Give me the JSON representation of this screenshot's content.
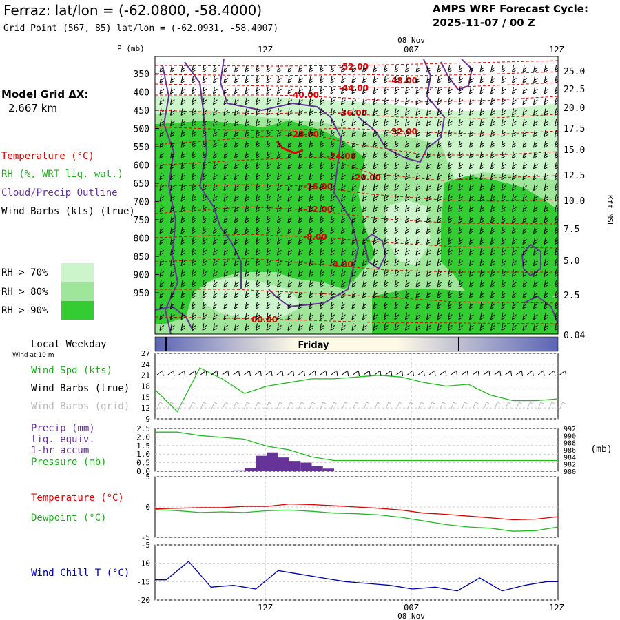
{
  "header": {
    "title": "Ferraz:  lat/lon = (-62.0800, -58.4000)",
    "subtitle": "Grid Point (567, 85) lat/lon = (-62.0931, -58.4007)",
    "cycle_line1": "AMPS WRF Forecast Cycle:",
    "cycle_line2": "2025-11-07 / 00  Z"
  },
  "left_panel": {
    "grid_label": "Model Grid ΔX:",
    "grid_value": "2.667 km",
    "legend_temperature": "Temperature (°C)",
    "legend_rh": "RH (%, WRT liq. wat.)",
    "legend_cloud": "Cloud/Precip Outline",
    "legend_wind": "Wind Barbs (kts) (true)",
    "rh_keys": [
      "RH > 70%",
      "RH > 80%",
      "RH > 90%"
    ],
    "weekday_label": "Local Weekday",
    "wind_at": "Wind at 10 m",
    "wspd_label": "Wind Spd (kts)",
    "wbarb_true_label": "Wind Barbs (true)",
    "wbarb_grid_label": "Wind Barbs (grid)",
    "precip_label1": "Precip (mm)",
    "precip_label2": "liq. equiv.",
    "precip_label3": "1-hr accum",
    "pressure_label": "Pressure (mb)",
    "temp_label": "Temperature (°C)",
    "dew_label": "Dewpoint (°C)",
    "windchill_label": "Wind Chill T (°C)"
  },
  "colors": {
    "temperature": "#e00000",
    "rh70": "#ccf5cc",
    "rh80": "#a0e69a",
    "rh90": "#33cc33",
    "cloud": "#663399",
    "wind": "#000000",
    "wspd": "#22bb22",
    "precip": "#663399",
    "pressure": "#22bb22",
    "dewpoint": "#22bb22",
    "windchill": "#0000aa",
    "weekday_band_edge": "#5a64b4",
    "weekday_band_mid": "#fffae6"
  },
  "time_axis": {
    "top_labels": [
      "12Z",
      "00Z",
      "12Z"
    ],
    "date_label": "08 Nov",
    "bottom_labels": [
      "12Z",
      "00Z",
      "12Z"
    ],
    "weekday": "Friday"
  },
  "chart_data": [
    {
      "type": "heatmap",
      "title": "",
      "ylabel": "P (mb)",
      "y2label": "Kft MSL",
      "pressure_ticks": [
        "350",
        "400",
        "450",
        "500",
        "550",
        "600",
        "650",
        "700",
        "750",
        "800",
        "850",
        "900",
        "950"
      ],
      "height_ticks": [
        "25.0",
        "22.5",
        "20.0",
        "17.5",
        "15.0",
        "12.5",
        "10.0",
        "7.5",
        "5.0",
        "2.5",
        "0.04"
      ],
      "temperature_contour_labels": [
        "-52.00",
        "-48.00",
        "-44.00",
        "-40.00",
        "-36.00",
        "-32.00",
        "-28.00",
        "-24.00",
        "-20.00",
        "-16.00",
        "-12.00",
        "-8.00",
        "-4.00",
        "00.00"
      ]
    },
    {
      "type": "line",
      "title": "Wind Spd (kts)",
      "y_ticks": [
        "27",
        "24",
        "21",
        "18",
        "15",
        "12",
        "9"
      ],
      "ylim": [
        9,
        27
      ],
      "x_hours": [
        0,
        2,
        4,
        6,
        8,
        10,
        12,
        14,
        16,
        18,
        20,
        22,
        24,
        26,
        28,
        30,
        32,
        34,
        36
      ],
      "values": [
        17,
        11,
        23,
        20,
        16,
        18,
        19,
        20,
        20,
        20.5,
        21,
        20.5,
        19,
        18,
        18.5,
        15.5,
        14,
        14,
        14.5
      ]
    },
    {
      "type": "bar",
      "title": "Precip (mm) / Pressure (mb)",
      "y_ticks": [
        "2.5",
        "2.0",
        "1.5",
        "1.0",
        "0.5",
        "0.0"
      ],
      "y2_ticks": [
        "992",
        "990",
        "988",
        "986",
        "984",
        "982",
        "980"
      ],
      "ylim": [
        0,
        2.5
      ],
      "precip_hours": [
        7,
        8,
        9,
        10,
        11,
        12,
        13,
        14,
        15
      ],
      "precip_values": [
        0.05,
        0.2,
        0.9,
        1.1,
        0.8,
        0.6,
        0.5,
        0.3,
        0.15
      ],
      "pressure_hours": [
        0,
        2,
        4,
        6,
        8,
        10,
        12,
        14,
        16,
        18,
        20,
        22,
        24,
        26,
        28,
        30,
        32,
        34,
        36
      ],
      "pressure_values": [
        991,
        991,
        990,
        989.5,
        989,
        987,
        986,
        984,
        983,
        983,
        983,
        983,
        983,
        983,
        983,
        983,
        983,
        983,
        983
      ]
    },
    {
      "type": "line",
      "title": "Temperature / Dewpoint (°C)",
      "y_ticks": [
        "5",
        "0",
        "-5"
      ],
      "ylim": [
        -5,
        5
      ],
      "x_hours": [
        0,
        2,
        4,
        6,
        8,
        10,
        12,
        14,
        16,
        18,
        20,
        22,
        24,
        26,
        28,
        30,
        32,
        34,
        36
      ],
      "series": [
        {
          "name": "Temperature",
          "values": [
            -0.3,
            -0.2,
            -0.1,
            -0.1,
            0.1,
            0.1,
            0.5,
            0.4,
            0.2,
            0.0,
            -0.2,
            -0.5,
            -1.0,
            -1.2,
            -1.5,
            -1.8,
            -2.1,
            -2.0,
            -1.6
          ]
        },
        {
          "name": "Dewpoint",
          "values": [
            -0.4,
            -0.6,
            -0.9,
            -0.8,
            -0.9,
            -0.6,
            -0.5,
            -0.7,
            -1.0,
            -1.1,
            -1.3,
            -1.7,
            -2.3,
            -2.9,
            -3.3,
            -3.5,
            -4.0,
            -3.9,
            -3.3
          ]
        }
      ]
    },
    {
      "type": "line",
      "title": "Wind Chill T (°C)",
      "y_ticks": [
        "-5",
        "-10",
        "-15",
        "-20"
      ],
      "ylim": [
        -20,
        -5
      ],
      "x_hours": [
        0,
        1,
        3,
        5,
        7,
        9,
        11,
        13,
        15,
        17,
        19,
        21,
        23,
        25,
        27,
        29,
        31,
        33,
        35,
        36
      ],
      "values": [
        -14.5,
        -14.5,
        -9.5,
        -16.5,
        -16,
        -17,
        -12,
        -13,
        -14,
        -15,
        -15.5,
        -16,
        -17,
        -16.5,
        -17.5,
        -14,
        -17.5,
        -16,
        -15,
        -15
      ]
    }
  ]
}
